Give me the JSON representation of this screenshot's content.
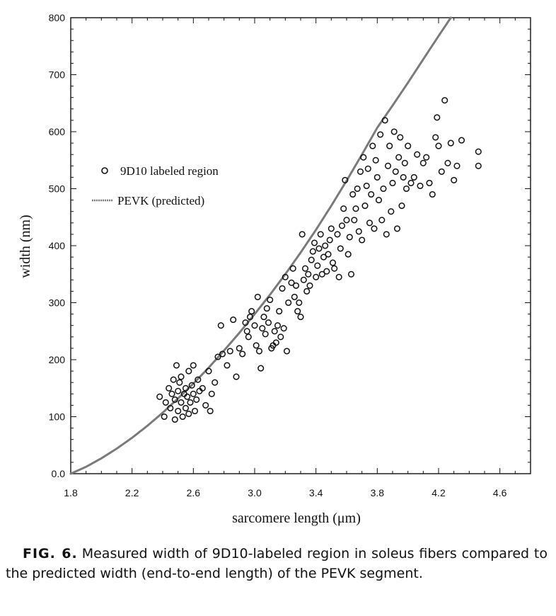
{
  "caption": {
    "label": "FIG. 6.",
    "text": "Measured width of 9D10-labeled region in soleus fibers compared to the predicted width (end-to-end length) of the PEVK segment."
  },
  "chart_data": {
    "type": "scatter",
    "xlabel": "sarcomere length (μm)",
    "ylabel": "width (nm)",
    "xlim": [
      1.8,
      4.8
    ],
    "ylim": [
      0,
      800
    ],
    "xticks": [
      "1.8",
      "2.2",
      "2.6",
      "3.0",
      "3.4",
      "3.8",
      "4.2",
      "4.6"
    ],
    "yticks": [
      "0.0",
      "100",
      "200",
      "300",
      "400",
      "500",
      "600",
      "700",
      "800"
    ],
    "legend": {
      "placement": "upper-left",
      "entries": [
        {
          "label": "9D10 labeled region",
          "marker": "open-circle"
        },
        {
          "label": "PEVK (predicted)",
          "marker": "line"
        }
      ]
    },
    "grid": false,
    "colors": {
      "points": "#111111",
      "line": "#7a7a7a"
    },
    "series": [
      {
        "name": "9D10 labeled region",
        "kind": "scatter",
        "points": [
          [
            2.38,
            135
          ],
          [
            2.41,
            100
          ],
          [
            2.42,
            125
          ],
          [
            2.44,
            150
          ],
          [
            2.45,
            115
          ],
          [
            2.46,
            140
          ],
          [
            2.47,
            165
          ],
          [
            2.48,
            130
          ],
          [
            2.48,
            95
          ],
          [
            2.49,
            190
          ],
          [
            2.5,
            110
          ],
          [
            2.5,
            145
          ],
          [
            2.51,
            160
          ],
          [
            2.52,
            125
          ],
          [
            2.52,
            170
          ],
          [
            2.53,
            100
          ],
          [
            2.54,
            140
          ],
          [
            2.55,
            115
          ],
          [
            2.55,
            150
          ],
          [
            2.56,
            135
          ],
          [
            2.57,
            105
          ],
          [
            2.57,
            180
          ],
          [
            2.58,
            125
          ],
          [
            2.59,
            155
          ],
          [
            2.6,
            140
          ],
          [
            2.6,
            190
          ],
          [
            2.61,
            110
          ],
          [
            2.62,
            130
          ],
          [
            2.63,
            165
          ],
          [
            2.64,
            145
          ],
          [
            2.66,
            150
          ],
          [
            2.68,
            120
          ],
          [
            2.7,
            180
          ],
          [
            2.71,
            110
          ],
          [
            2.72,
            140
          ],
          [
            2.74,
            160
          ],
          [
            2.76,
            205
          ],
          [
            2.78,
            260
          ],
          [
            2.79,
            210
          ],
          [
            2.82,
            190
          ],
          [
            2.84,
            215
          ],
          [
            2.86,
            270
          ],
          [
            2.88,
            170
          ],
          [
            2.9,
            220
          ],
          [
            2.92,
            210
          ],
          [
            2.94,
            265
          ],
          [
            2.95,
            250
          ],
          [
            2.96,
            240
          ],
          [
            2.97,
            275
          ],
          [
            2.98,
            285
          ],
          [
            3.0,
            260
          ],
          [
            3.01,
            225
          ],
          [
            3.02,
            310
          ],
          [
            3.03,
            215
          ],
          [
            3.04,
            185
          ],
          [
            3.05,
            255
          ],
          [
            3.06,
            275
          ],
          [
            3.07,
            245
          ],
          [
            3.08,
            290
          ],
          [
            3.09,
            265
          ],
          [
            3.1,
            305
          ],
          [
            3.11,
            220
          ],
          [
            3.12,
            225
          ],
          [
            3.13,
            250
          ],
          [
            3.14,
            230
          ],
          [
            3.15,
            260
          ],
          [
            3.16,
            285
          ],
          [
            3.17,
            240
          ],
          [
            3.18,
            325
          ],
          [
            3.19,
            255
          ],
          [
            3.2,
            345
          ],
          [
            3.21,
            215
          ],
          [
            3.22,
            300
          ],
          [
            3.24,
            335
          ],
          [
            3.25,
            360
          ],
          [
            3.26,
            310
          ],
          [
            3.27,
            330
          ],
          [
            3.28,
            285
          ],
          [
            3.29,
            300
          ],
          [
            3.3,
            275
          ],
          [
            3.31,
            420
          ],
          [
            3.32,
            340
          ],
          [
            3.33,
            360
          ],
          [
            3.34,
            320
          ],
          [
            3.35,
            350
          ],
          [
            3.36,
            330
          ],
          [
            3.37,
            375
          ],
          [
            3.38,
            390
          ],
          [
            3.39,
            405
          ],
          [
            3.4,
            345
          ],
          [
            3.41,
            365
          ],
          [
            3.42,
            395
          ],
          [
            3.43,
            420
          ],
          [
            3.44,
            350
          ],
          [
            3.45,
            380
          ],
          [
            3.46,
            400
          ],
          [
            3.47,
            355
          ],
          [
            3.48,
            385
          ],
          [
            3.49,
            410
          ],
          [
            3.5,
            430
          ],
          [
            3.51,
            370
          ],
          [
            3.52,
            360
          ],
          [
            3.54,
            420
          ],
          [
            3.55,
            345
          ],
          [
            3.56,
            395
          ],
          [
            3.57,
            435
          ],
          [
            3.58,
            465
          ],
          [
            3.59,
            515
          ],
          [
            3.6,
            445
          ],
          [
            3.61,
            385
          ],
          [
            3.62,
            415
          ],
          [
            3.63,
            350
          ],
          [
            3.64,
            490
          ],
          [
            3.65,
            445
          ],
          [
            3.66,
            465
          ],
          [
            3.67,
            500
          ],
          [
            3.68,
            425
          ],
          [
            3.69,
            530
          ],
          [
            3.7,
            410
          ],
          [
            3.71,
            555
          ],
          [
            3.72,
            470
          ],
          [
            3.73,
            505
          ],
          [
            3.74,
            535
          ],
          [
            3.75,
            440
          ],
          [
            3.76,
            490
          ],
          [
            3.77,
            575
          ],
          [
            3.78,
            430
          ],
          [
            3.79,
            550
          ],
          [
            3.8,
            520
          ],
          [
            3.81,
            480
          ],
          [
            3.82,
            595
          ],
          [
            3.83,
            445
          ],
          [
            3.84,
            500
          ],
          [
            3.85,
            620
          ],
          [
            3.86,
            420
          ],
          [
            3.87,
            540
          ],
          [
            3.88,
            575
          ],
          [
            3.89,
            460
          ],
          [
            3.9,
            510
          ],
          [
            3.91,
            600
          ],
          [
            3.92,
            530
          ],
          [
            3.93,
            430
          ],
          [
            3.94,
            555
          ],
          [
            3.95,
            590
          ],
          [
            3.96,
            470
          ],
          [
            3.97,
            520
          ],
          [
            3.98,
            545
          ],
          [
            3.99,
            500
          ],
          [
            4.0,
            575
          ],
          [
            4.02,
            510
          ],
          [
            4.04,
            520
          ],
          [
            4.06,
            560
          ],
          [
            4.08,
            505
          ],
          [
            4.1,
            545
          ],
          [
            4.12,
            555
          ],
          [
            4.14,
            510
          ],
          [
            4.16,
            490
          ],
          [
            4.18,
            590
          ],
          [
            4.19,
            625
          ],
          [
            4.2,
            575
          ],
          [
            4.22,
            530
          ],
          [
            4.24,
            655
          ],
          [
            4.26,
            545
          ],
          [
            4.28,
            580
          ],
          [
            4.3,
            515
          ],
          [
            4.32,
            540
          ],
          [
            4.35,
            585
          ],
          [
            4.46,
            565
          ],
          [
            4.46,
            540
          ]
        ]
      },
      {
        "name": "PEVK (predicted)",
        "kind": "line",
        "points": [
          [
            1.8,
            0
          ],
          [
            1.9,
            12
          ],
          [
            2.0,
            27
          ],
          [
            2.1,
            44
          ],
          [
            2.2,
            63
          ],
          [
            2.3,
            84
          ],
          [
            2.4,
            107
          ],
          [
            2.5,
            132
          ],
          [
            2.6,
            158
          ],
          [
            2.7,
            186
          ],
          [
            2.8,
            216
          ],
          [
            2.9,
            247
          ],
          [
            3.0,
            280
          ],
          [
            3.1,
            314
          ],
          [
            3.2,
            350
          ],
          [
            3.3,
            388
          ],
          [
            3.4,
            428
          ],
          [
            3.5,
            470
          ],
          [
            3.6,
            514
          ],
          [
            3.7,
            560
          ],
          [
            3.8,
            607
          ],
          [
            3.9,
            646
          ],
          [
            4.0,
            686
          ],
          [
            4.1,
            727
          ],
          [
            4.2,
            768
          ],
          [
            4.28,
            800
          ]
        ]
      }
    ]
  }
}
